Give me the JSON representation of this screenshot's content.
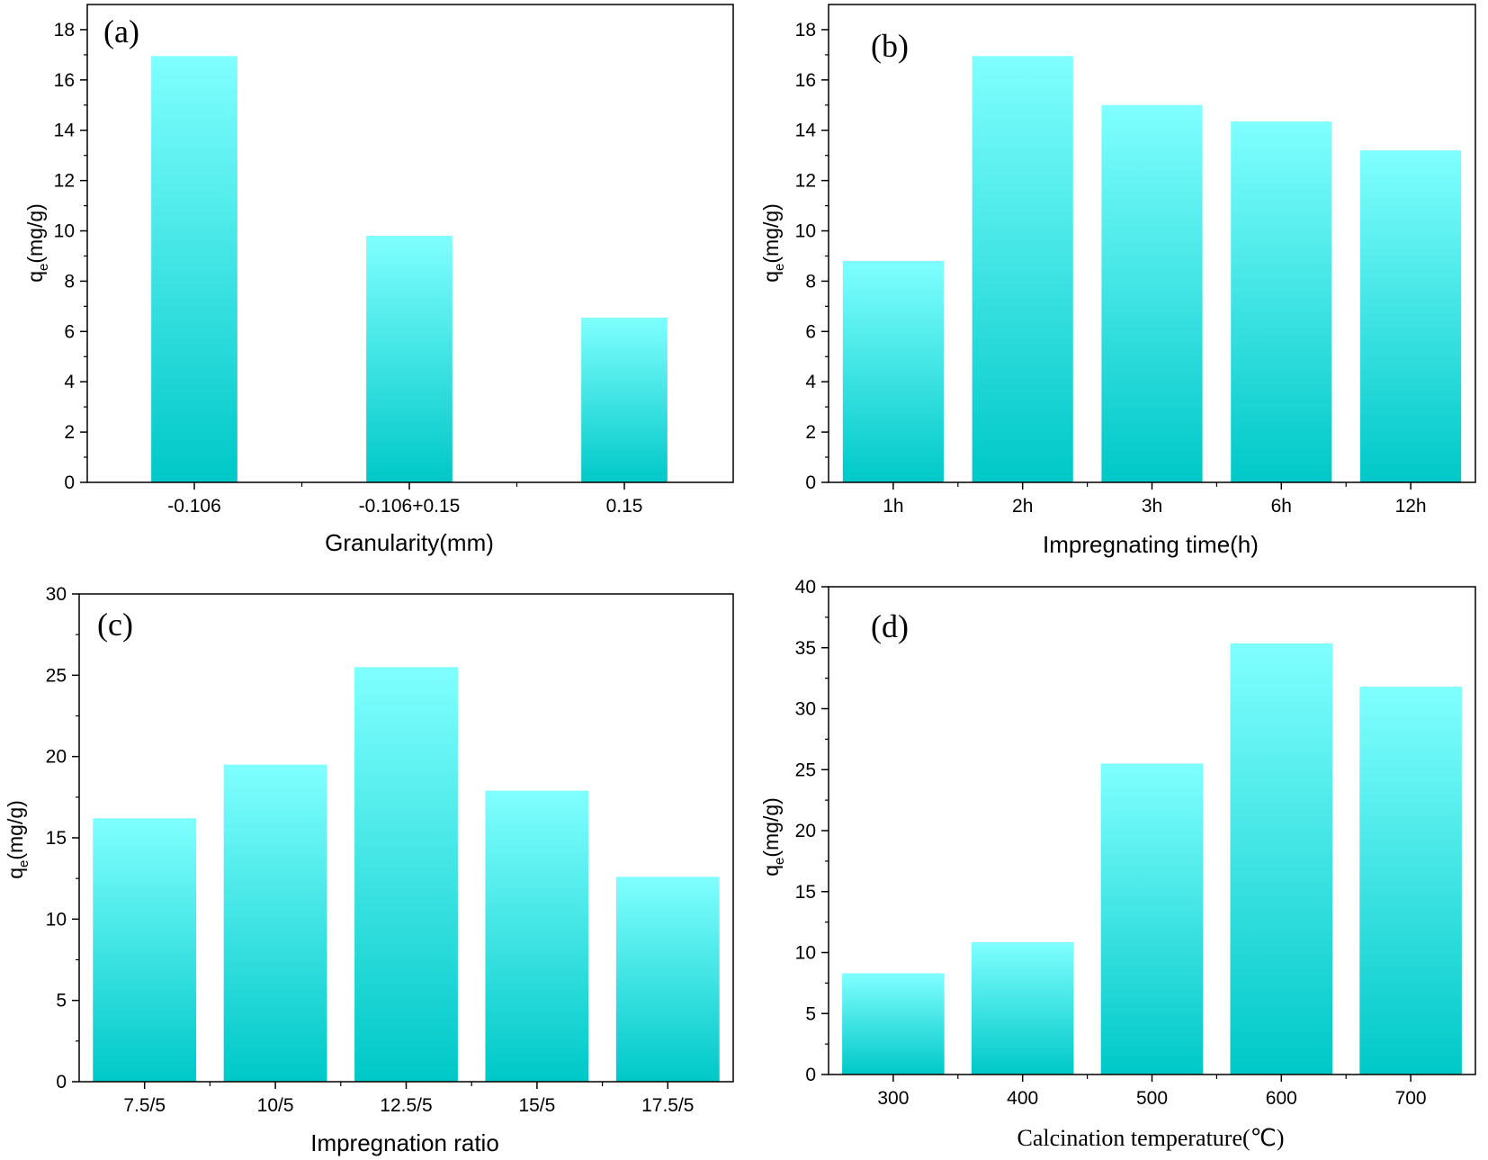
{
  "colors": {
    "bar_top": "#80FFFF",
    "bar_bottom": "#00C8C8",
    "axis": "#000000"
  },
  "chart_data": [
    {
      "type": "bar",
      "panel_label": "(a)",
      "categories": [
        "-0.106",
        "-0.106+0.15",
        "0.15"
      ],
      "values": [
        16.95,
        9.8,
        6.55
      ],
      "xlabel": "Granularity(mm)",
      "ylabel": {
        "base": "q",
        "sub": "e",
        "unit": "(mg/g)"
      },
      "ylim": [
        0,
        19
      ],
      "yticks": [
        0,
        2,
        4,
        6,
        8,
        10,
        12,
        14,
        16,
        18
      ],
      "grid": false
    },
    {
      "type": "bar",
      "panel_label": "(b)",
      "categories": [
        "1h",
        "2h",
        "3h",
        "6h",
        "12h"
      ],
      "values": [
        8.8,
        16.95,
        15.0,
        14.35,
        13.2
      ],
      "xlabel": "Impregnating time(h)",
      "ylabel": {
        "base": "q",
        "sub": "e",
        "unit": "(mg/g)"
      },
      "ylim": [
        0,
        19
      ],
      "yticks": [
        0,
        2,
        4,
        6,
        8,
        10,
        12,
        14,
        16,
        18
      ],
      "grid": false
    },
    {
      "type": "bar",
      "panel_label": "(c)",
      "categories": [
        "7.5/5",
        "10/5",
        "12.5/5",
        "15/5",
        "17.5/5"
      ],
      "values": [
        16.2,
        19.5,
        25.5,
        17.9,
        12.6
      ],
      "xlabel": "Impregnation ratio",
      "ylabel": {
        "base": "q",
        "sub": "e",
        "unit": "(mg/g)"
      },
      "ylim": [
        0,
        30
      ],
      "yticks": [
        0,
        5,
        10,
        15,
        20,
        25,
        30
      ],
      "grid": false
    },
    {
      "type": "bar",
      "panel_label": "(d)",
      "categories": [
        "300",
        "400",
        "500",
        "600",
        "700"
      ],
      "values": [
        8.3,
        10.85,
        25.5,
        35.35,
        31.8
      ],
      "xlabel": "Calcination temperature(℃)",
      "ylabel": {
        "base": "q",
        "sub": "e",
        "unit": "(mg/g)"
      },
      "ylim": [
        0,
        40
      ],
      "yticks": [
        0,
        5,
        10,
        15,
        20,
        25,
        30,
        35,
        40
      ],
      "grid": false
    }
  ]
}
